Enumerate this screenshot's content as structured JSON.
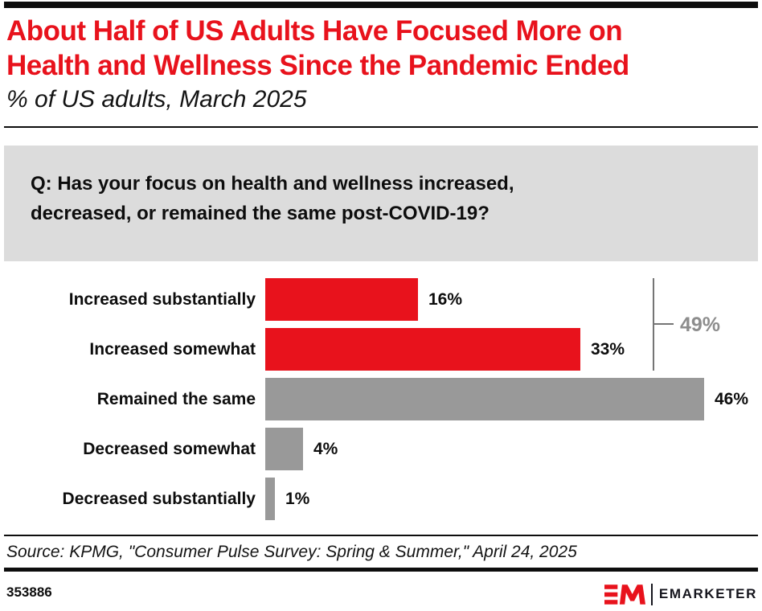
{
  "colors": {
    "accent_red": "#e8121c",
    "bar_gray": "#999999",
    "question_box_bg": "#dcdcdc",
    "bracket_gray": "#757575",
    "bracket_text_gray": "#8d8d8d"
  },
  "header": {
    "title_line1": "About Half of US Adults Have Focused More on",
    "title_line2": "Health and Wellness Since the Pandemic Ended",
    "subtitle": "% of US adults, March 2025"
  },
  "question": {
    "line1": "Q: Has your focus on health and wellness increased,",
    "line2": "decreased, or remained the same post-COVID-19?"
  },
  "chart_data": {
    "type": "bar",
    "orientation": "horizontal",
    "title": "About Half of US Adults Have Focused More on Health and Wellness Since the Pandemic Ended",
    "subtitle": "% of US adults, March 2025",
    "categories": [
      "Increased substantially",
      "Increased somewhat",
      "Remained the same",
      "Decreased somewhat",
      "Decreased substantially"
    ],
    "values": [
      16,
      33,
      46,
      4,
      1
    ],
    "value_labels": [
      "16%",
      "33%",
      "46%",
      "4%",
      "1%"
    ],
    "bar_colors": [
      "#e8121c",
      "#e8121c",
      "#999999",
      "#999999",
      "#999999"
    ],
    "xlim": [
      0,
      50
    ],
    "grid": false,
    "legend": "none",
    "annotation": {
      "label": "49%",
      "note": "bracket spanning Increased substantially + Increased somewhat",
      "spans": [
        "Increased substantially",
        "Increased somewhat"
      ]
    }
  },
  "source": {
    "text": "Source: KPMG, \"Consumer Pulse Survey: Spring & Summer,\" April 24, 2025"
  },
  "footer": {
    "chart_id": "353886",
    "brand": "EMARKETER"
  }
}
